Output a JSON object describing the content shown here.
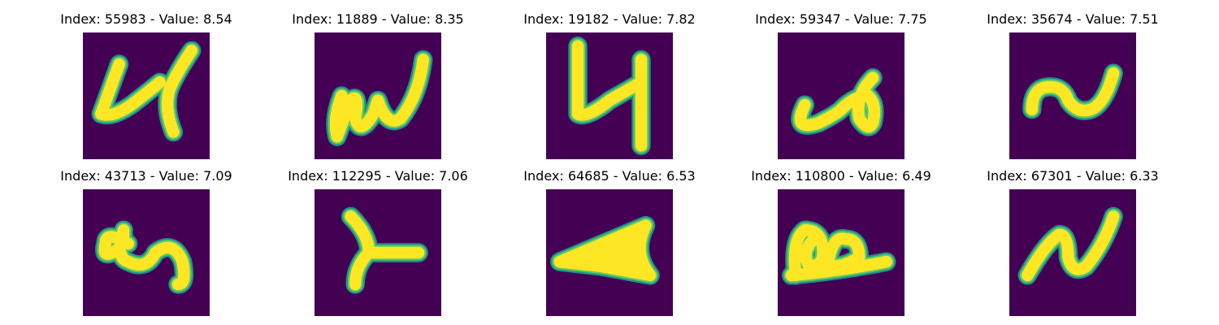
{
  "colors": {
    "background": "#440154",
    "edge": "#21918c",
    "mid": "#5ec962",
    "foreground": "#fde725"
  },
  "panels": [
    {
      "index": "55983",
      "value": "8.54",
      "title": "Index: 55983 - Value: 8.54",
      "glyph": "glyph-4-loop-icon"
    },
    {
      "index": "11889",
      "value": "8.35",
      "title": "Index: 11889 - Value: 8.35",
      "glyph": "glyph-w-scribble-icon"
    },
    {
      "index": "19182",
      "value": "7.82",
      "title": "Index: 19182 - Value: 7.82",
      "glyph": "glyph-y-shape-icon"
    },
    {
      "index": "59347",
      "value": "7.75",
      "title": "Index: 59347 - Value: 7.75",
      "glyph": "glyph-curl-icon"
    },
    {
      "index": "35674",
      "value": "7.51",
      "title": "Index: 35674 - Value: 7.51",
      "glyph": "glyph-tilde-icon"
    },
    {
      "index": "43713",
      "value": "7.09",
      "title": "Index: 43713 - Value: 7.09",
      "glyph": "glyph-loop-icon"
    },
    {
      "index": "112295",
      "value": "7.06",
      "title": "Index: 112295 - Value: 7.06",
      "glyph": "glyph-y-fork-icon"
    },
    {
      "index": "64685",
      "value": "6.53",
      "title": "Index: 64685 - Value: 6.53",
      "glyph": "glyph-arrowhead-icon"
    },
    {
      "index": "110800",
      "value": "6.49",
      "title": "Index: 110800 - Value: 6.49",
      "glyph": "glyph-double-loop-icon"
    },
    {
      "index": "67301",
      "value": "6.33",
      "title": "Index: 67301 - Value: 6.33",
      "glyph": "glyph-n-wave-icon"
    }
  ]
}
